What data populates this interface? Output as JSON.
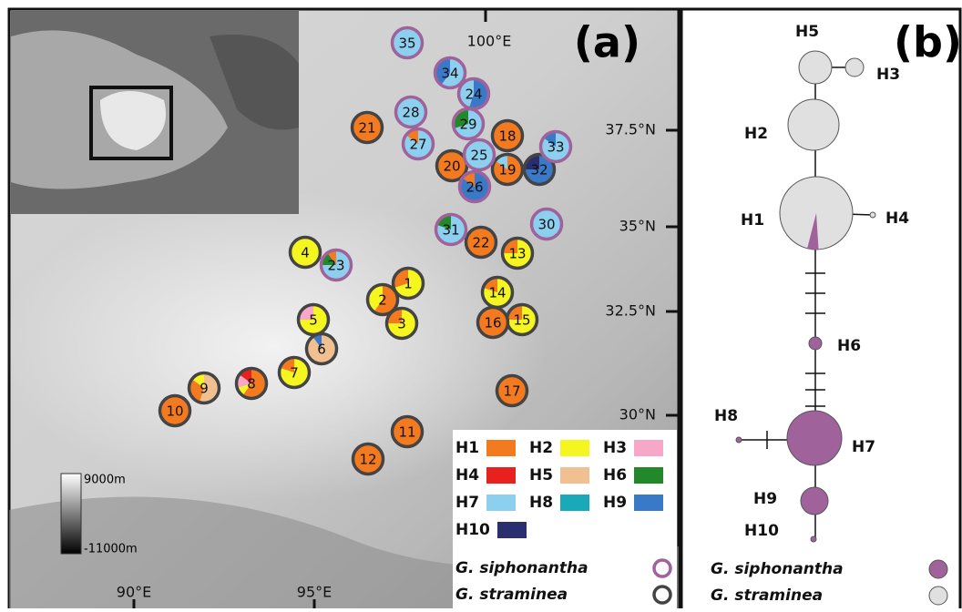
{
  "panel_a": {
    "label": "(a)",
    "longitudes": [
      "100°E",
      "90°E",
      "95°E"
    ],
    "latitudes": [
      "37.5°N",
      "35°N",
      "32.5°N",
      "30°N"
    ],
    "elevation_scale": {
      "max": "9000m",
      "min": "-11000m"
    },
    "populations": [
      {
        "label": "1",
        "species": 1,
        "shares": [
          [
            1,
            0.7
          ],
          [
            0,
            0.3
          ]
        ]
      },
      {
        "label": "2",
        "species": 1,
        "shares": [
          [
            0,
            0.6
          ],
          [
            1,
            0.4
          ]
        ]
      },
      {
        "label": "3",
        "species": 1,
        "shares": [
          [
            1,
            0.75
          ],
          [
            0,
            0.25
          ]
        ]
      },
      {
        "label": "4",
        "species": 1,
        "shares": [
          [
            1,
            1
          ]
        ]
      },
      {
        "label": "5",
        "species": 1,
        "shares": [
          [
            1,
            0.75
          ],
          [
            2,
            0.25
          ]
        ]
      },
      {
        "label": "6",
        "species": 1,
        "shares": [
          [
            4,
            0.9
          ],
          [
            8,
            0.1
          ]
        ]
      },
      {
        "label": "7",
        "species": 1,
        "shares": [
          [
            1,
            0.8
          ],
          [
            0,
            0.2
          ]
        ]
      },
      {
        "label": "8",
        "species": 1,
        "shares": [
          [
            0,
            0.6
          ],
          [
            1,
            0.1
          ],
          [
            2,
            0.15
          ],
          [
            3,
            0.15
          ]
        ]
      },
      {
        "label": "9",
        "species": 1,
        "shares": [
          [
            4,
            0.55
          ],
          [
            0,
            0.3
          ],
          [
            1,
            0.15
          ]
        ]
      },
      {
        "label": "10",
        "species": 1,
        "shares": [
          [
            0,
            1
          ]
        ]
      },
      {
        "label": "11",
        "species": 1,
        "shares": [
          [
            0,
            1
          ]
        ]
      },
      {
        "label": "12",
        "species": 1,
        "shares": [
          [
            0,
            1
          ]
        ]
      },
      {
        "label": "13",
        "species": 1,
        "shares": [
          [
            1,
            0.75
          ],
          [
            0,
            0.25
          ]
        ]
      },
      {
        "label": "14",
        "species": 1,
        "shares": [
          [
            1,
            0.8
          ],
          [
            0,
            0.2
          ]
        ]
      },
      {
        "label": "15",
        "species": 1,
        "shares": [
          [
            1,
            0.75
          ],
          [
            0,
            0.25
          ]
        ]
      },
      {
        "label": "16",
        "species": 1,
        "shares": [
          [
            0,
            1
          ]
        ]
      },
      {
        "label": "17",
        "species": 1,
        "shares": [
          [
            0,
            1
          ]
        ]
      },
      {
        "label": "18",
        "species": 1,
        "shares": [
          [
            0,
            1
          ]
        ]
      },
      {
        "label": "19",
        "species": 1,
        "shares": [
          [
            0,
            0.85
          ],
          [
            6,
            0.15
          ]
        ]
      },
      {
        "label": "20",
        "species": 1,
        "shares": [
          [
            0,
            1
          ]
        ]
      },
      {
        "label": "21",
        "species": 1,
        "shares": [
          [
            0,
            1
          ]
        ]
      },
      {
        "label": "22",
        "species": 1,
        "shares": [
          [
            0,
            1
          ]
        ]
      },
      {
        "label": "23",
        "species": 0,
        "shares": [
          [
            6,
            0.75
          ],
          [
            5,
            0.15
          ],
          [
            0,
            0.1
          ]
        ]
      },
      {
        "label": "24",
        "species": 0,
        "shares": [
          [
            8,
            0.55
          ],
          [
            6,
            0.45
          ]
        ]
      },
      {
        "label": "25",
        "species": 0,
        "shares": [
          [
            6,
            1
          ]
        ]
      },
      {
        "label": "26",
        "species": 0,
        "shares": [
          [
            8,
            0.85
          ],
          [
            0,
            0.15
          ]
        ]
      },
      {
        "label": "27",
        "species": 0,
        "shares": [
          [
            6,
            0.85
          ],
          [
            0,
            0.15
          ]
        ]
      },
      {
        "label": "28",
        "species": 0,
        "shares": [
          [
            6,
            1
          ]
        ]
      },
      {
        "label": "29",
        "species": 0,
        "shares": [
          [
            6,
            0.7
          ],
          [
            5,
            0.3
          ]
        ]
      },
      {
        "label": "30",
        "species": 0,
        "shares": [
          [
            6,
            1
          ]
        ]
      },
      {
        "label": "31",
        "species": 0,
        "shares": [
          [
            6,
            0.8
          ],
          [
            5,
            0.2
          ]
        ]
      },
      {
        "label": "32",
        "species": 1,
        "shares": [
          [
            8,
            0.75
          ],
          [
            9,
            0.25
          ]
        ]
      },
      {
        "label": "33",
        "species": 0,
        "shares": [
          [
            6,
            0.85
          ],
          [
            8,
            0.15
          ]
        ]
      },
      {
        "label": "34",
        "species": 0,
        "shares": [
          [
            6,
            0.6
          ],
          [
            8,
            0.4
          ]
        ]
      },
      {
        "label": "35",
        "species": 0,
        "shares": [
          [
            6,
            1
          ]
        ]
      }
    ]
  },
  "legend": {
    "haplotypes": [
      {
        "name": "H1",
        "color": "#f47a20"
      },
      {
        "name": "H2",
        "color": "#f5f520"
      },
      {
        "name": "H3",
        "color": "#f7a8c8"
      },
      {
        "name": "H4",
        "color": "#e8201e"
      },
      {
        "name": "H5",
        "color": "#f0c090"
      },
      {
        "name": "H6",
        "color": "#22882a"
      },
      {
        "name": "H7",
        "color": "#8ccfef"
      },
      {
        "name": "H8",
        "color": "#19a9b8"
      },
      {
        "name": "H9",
        "color": "#3a78c8"
      },
      {
        "name": "H10",
        "color": "#2a2d6e"
      }
    ],
    "species": [
      {
        "name": "G. siphonantha",
        "color": "#a0629a"
      },
      {
        "name": "G. straminea",
        "color": "#444444"
      }
    ]
  },
  "panel_b": {
    "label": "(b)",
    "nodes": [
      {
        "label": "H1",
        "siphonantha_share": 0.05
      },
      {
        "label": "H2",
        "siphonantha_share": 0
      },
      {
        "label": "H3",
        "siphonantha_share": 0
      },
      {
        "label": "H4",
        "siphonantha_share": 0
      },
      {
        "label": "H5",
        "siphonantha_share": 0
      },
      {
        "label": "H6",
        "siphonantha_share": 1
      },
      {
        "label": "H7",
        "siphonantha_share": 1
      },
      {
        "label": "H8",
        "siphonantha_share": 1
      },
      {
        "label": "H9",
        "siphonantha_share": 1
      },
      {
        "label": "H10",
        "siphonantha_share": 1
      }
    ],
    "legend": [
      {
        "name": "G. siphonantha",
        "color": "#a0629a"
      },
      {
        "name": "G. straminea",
        "color": "#e0e0e0"
      }
    ]
  }
}
